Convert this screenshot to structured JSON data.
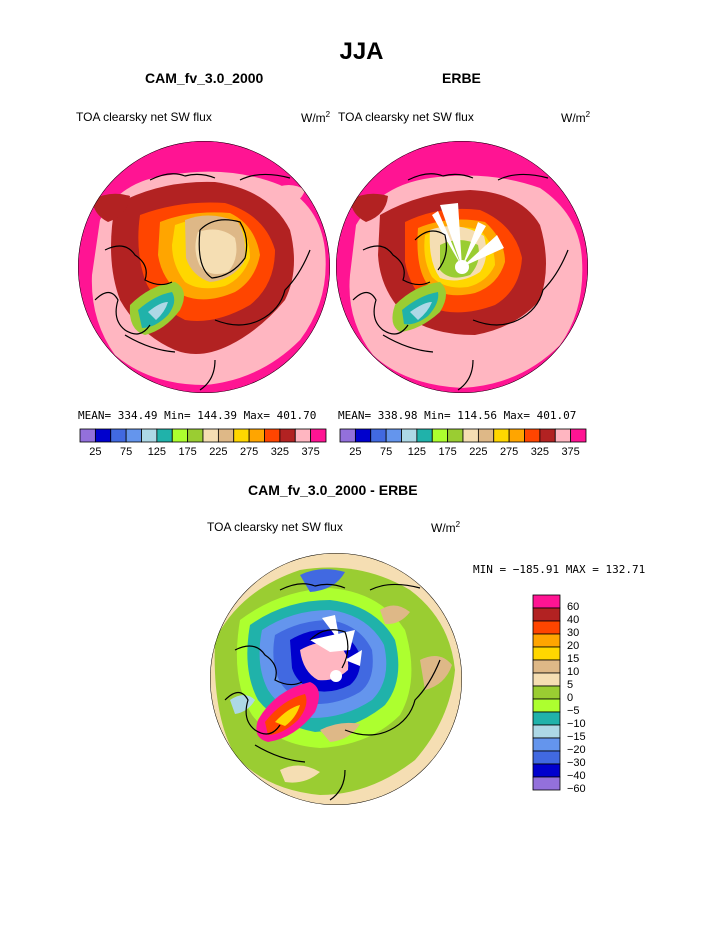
{
  "figure": {
    "season_title": "JJA",
    "diff_title": "CAM_fv_3.0_2000 - ERBE",
    "diff_variable": "TOA clearsky net SW flux",
    "diff_units": "W/m",
    "diff_units_exp": "2",
    "diff_stats": "MIN = −185.91  MAX = 132.71"
  },
  "chart_data": [
    {
      "type": "heatmap",
      "projection": "north-polar-stereographic",
      "title": "CAM_fv_3.0_2000",
      "variable": "TOA clearsky net SW flux",
      "units": "W/m",
      "units_exp": "2",
      "stats_text": "MEAN= 334.49   Min= 144.39   Max= 401.70",
      "mean": 334.49,
      "min": 144.39,
      "max": 401.7,
      "colorbar_levels": [
        25,
        50,
        75,
        100,
        125,
        150,
        175,
        200,
        225,
        250,
        275,
        300,
        325,
        350,
        375
      ],
      "colorbar_labels": [
        "25",
        "75",
        "125",
        "175",
        "225",
        "275",
        "325",
        "375"
      ],
      "colors": [
        "#9370db",
        "#0000cd",
        "#4169e1",
        "#6495ed",
        "#add8e6",
        "#20b2aa",
        "#adff2f",
        "#9acd32",
        "#f5deb3",
        "#deb887",
        "#ffd700",
        "#ffa500",
        "#ff4500",
        "#b22222",
        "#ffb6c1",
        "#ff1493"
      ]
    },
    {
      "type": "heatmap",
      "projection": "north-polar-stereographic",
      "title": "ERBE",
      "variable": "TOA clearsky net SW flux",
      "units": "W/m",
      "units_exp": "2",
      "stats_text": "MEAN= 338.98   Min= 114.56   Max= 401.07",
      "mean": 338.98,
      "min": 114.56,
      "max": 401.07,
      "colorbar_levels": [
        25,
        50,
        75,
        100,
        125,
        150,
        175,
        200,
        225,
        250,
        275,
        300,
        325,
        350,
        375
      ],
      "colorbar_labels": [
        "25",
        "75",
        "125",
        "175",
        "225",
        "275",
        "325",
        "375"
      ],
      "colors": [
        "#9370db",
        "#0000cd",
        "#4169e1",
        "#6495ed",
        "#add8e6",
        "#20b2aa",
        "#adff2f",
        "#9acd32",
        "#f5deb3",
        "#deb887",
        "#ffd700",
        "#ffa500",
        "#ff4500",
        "#b22222",
        "#ffb6c1",
        "#ff1493"
      ]
    },
    {
      "type": "heatmap",
      "projection": "north-polar-stereographic",
      "title": "CAM_fv_3.0_2000 - ERBE",
      "variable": "TOA clearsky net SW flux",
      "min": -185.91,
      "max": 132.71,
      "colorbar_labels": [
        "60",
        "40",
        "30",
        "20",
        "15",
        "10",
        "5",
        "0",
        "−5",
        "−10",
        "−15",
        "−20",
        "−30",
        "−40",
        "−60"
      ],
      "colors": [
        "#ff1493",
        "#b22222",
        "#ff4500",
        "#ffa500",
        "#ffd700",
        "#deb887",
        "#f5deb3",
        "#9acd32",
        "#adff2f",
        "#20b2aa",
        "#add8e6",
        "#6495ed",
        "#4169e1",
        "#0000cd",
        "#9370db"
      ]
    }
  ]
}
